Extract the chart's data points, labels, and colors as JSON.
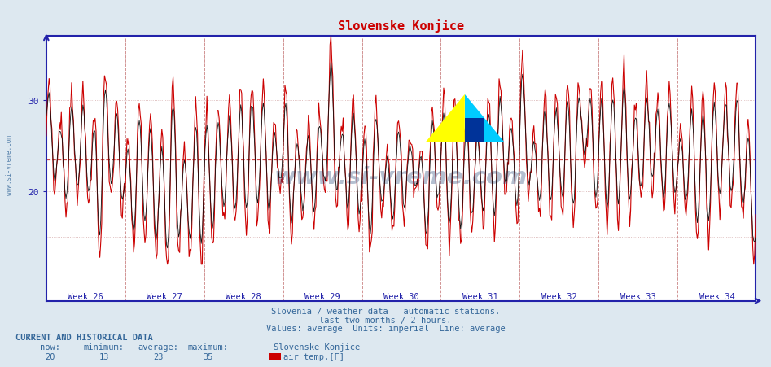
{
  "title": "Slovenske Konjice",
  "title_color": "#cc0000",
  "yticks": [
    20,
    30
  ],
  "ymin": 13,
  "ymax": 37,
  "weeks": [
    "Week 26",
    "Week 27",
    "Week 28",
    "Week 29",
    "Week 30",
    "Week 31",
    "Week 32",
    "Week 33",
    "Week 34"
  ],
  "n_weeks": 9,
  "average_value": 23.5,
  "now": 20,
  "minimum": 13,
  "average": 23,
  "maximum": 35,
  "station": "Slovenske Konjice",
  "subtitle1": "Slovenia / weather data - automatic stations.",
  "subtitle2": "last two months / 2 hours.",
  "subtitle3": "Values: average  Units: imperial  Line: average",
  "subtitle_color": "#336699",
  "current_label": "CURRENT AND HISTORICAL DATA",
  "bg_color": "#dde8f0",
  "plot_bg_color": "#ffffff",
  "axis_color": "#2222aa",
  "grid_color_h": "#cc9999",
  "grid_color_v": "#cc8888",
  "avg_line_color": "#cc3333",
  "line_color_red": "#cc0000",
  "line_color_black": "#111111",
  "num_points": 756,
  "seed": 7,
  "watermark_text": "www.si-vreme.com",
  "watermark_color": "#2a4a7a",
  "watermark_alpha": 0.35,
  "logo_yellow": "#ffff00",
  "logo_cyan": "#00ccff",
  "logo_dark_blue": "#003399"
}
